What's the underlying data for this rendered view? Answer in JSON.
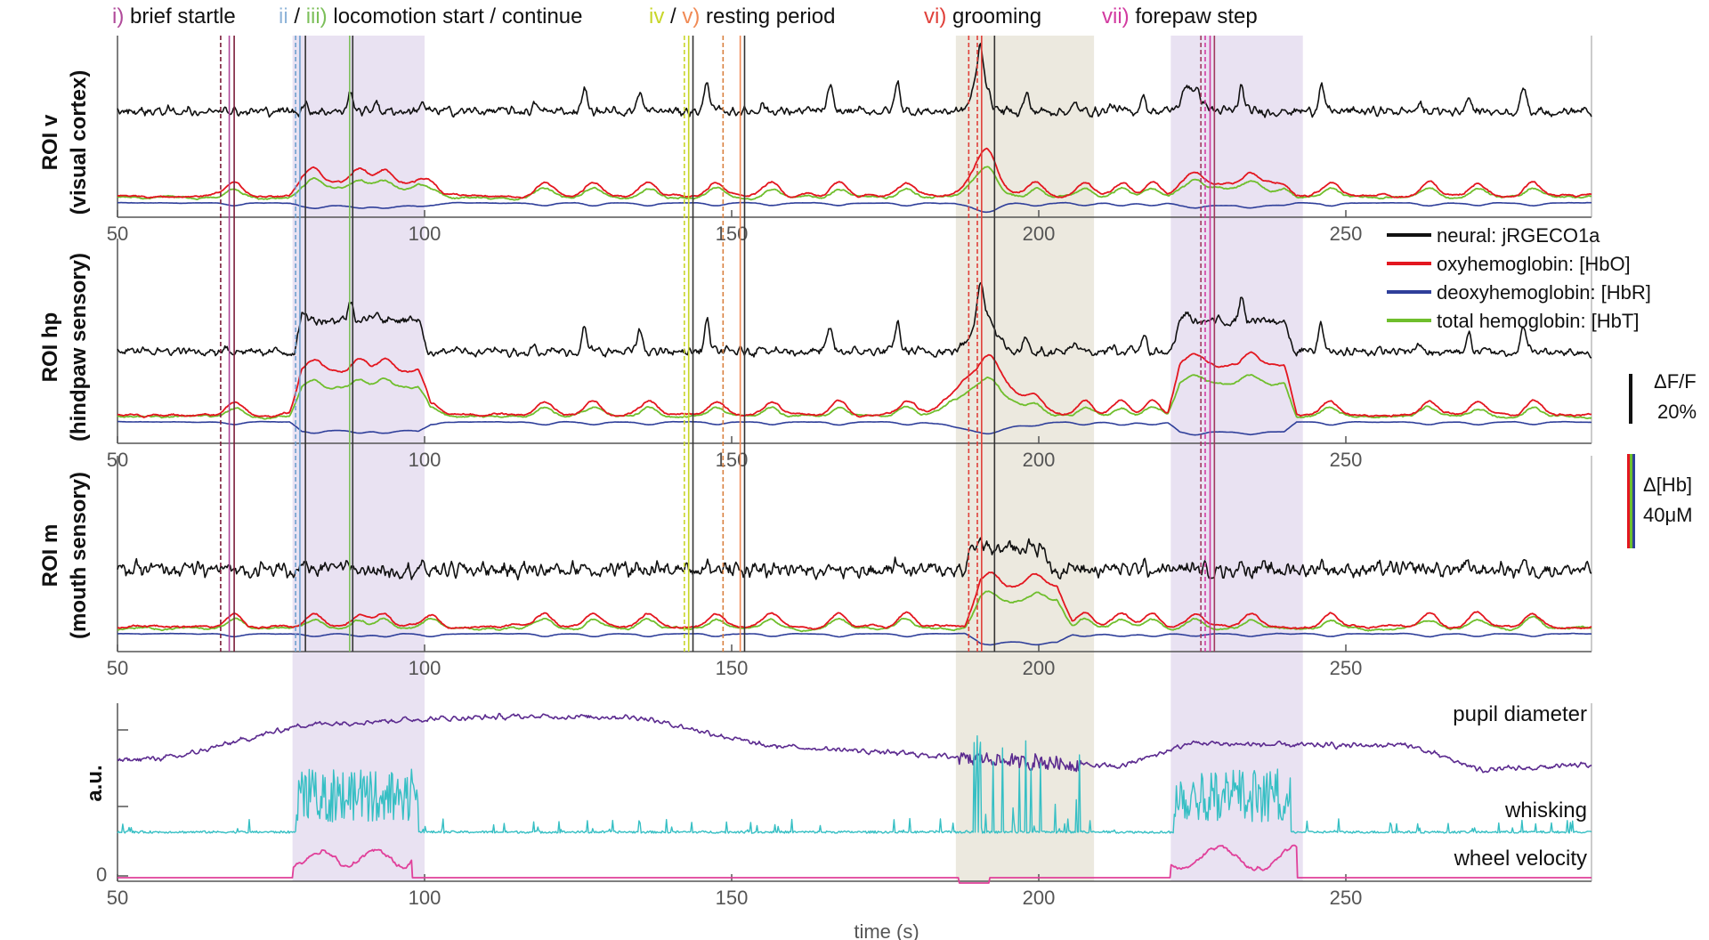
{
  "chart_data": {
    "type": "line",
    "xlabel": "time (s)",
    "xlim": [
      50,
      290
    ],
    "xticks": [
      50,
      100,
      150,
      200,
      250
    ],
    "shaded_periods": [
      {
        "start": 78.5,
        "end": 100,
        "color": "#e9e2f2"
      },
      {
        "start": 186.5,
        "end": 209,
        "color": "#ece9df"
      },
      {
        "start": 221.5,
        "end": 243,
        "color": "#e9e2f2"
      }
    ],
    "event_markers": [
      {
        "label_parts": [
          {
            "text": "i)",
            "color": "#b04a9a"
          },
          {
            "text": " brief startle",
            "color": "#111111"
          }
        ],
        "lines": [
          {
            "t": 66.8,
            "dash": true,
            "color": "#7a1e3a"
          },
          {
            "t": 68.2,
            "dash": false,
            "color": "#b04a9a"
          },
          {
            "t": 69.0,
            "dash": false,
            "color": "#7a1e3a"
          }
        ]
      },
      {
        "label_parts": [
          {
            "text": "ii",
            "color": "#8fb4d9"
          },
          {
            "text": " / ",
            "color": "#111111"
          },
          {
            "text": "iii)",
            "color": "#7cbf5a"
          },
          {
            "text": " locomotion start / continue",
            "color": "#111111"
          }
        ],
        "lines": [
          {
            "t": 79.0,
            "dash": true,
            "color": "#6fa0cf"
          },
          {
            "t": 79.7,
            "dash": false,
            "color": "#6fa0cf"
          },
          {
            "t": 80.6,
            "dash": false,
            "color": "#333333"
          },
          {
            "t": 87.8,
            "dash": false,
            "color": "#7cbf5a"
          },
          {
            "t": 88.3,
            "dash": false,
            "color": "#333333"
          }
        ]
      },
      {
        "label_parts": [
          {
            "text": "iv",
            "color": "#c8d62a"
          },
          {
            "text": " / ",
            "color": "#111111"
          },
          {
            "text": "v)",
            "color": "#f08a55"
          },
          {
            "text": " resting period",
            "color": "#111111"
          }
        ],
        "lines": [
          {
            "t": 142.3,
            "dash": true,
            "color": "#c8d62a"
          },
          {
            "t": 143.0,
            "dash": false,
            "color": "#c8d62a"
          },
          {
            "t": 143.7,
            "dash": false,
            "color": "#333333"
          },
          {
            "t": 148.6,
            "dash": true,
            "color": "#d98040"
          },
          {
            "t": 151.4,
            "dash": false,
            "color": "#f08a55"
          },
          {
            "t": 152.1,
            "dash": false,
            "color": "#333333"
          }
        ]
      },
      {
        "label_parts": [
          {
            "text": "vi)",
            "color": "#e0403a"
          },
          {
            "text": " grooming",
            "color": "#111111"
          }
        ],
        "lines": [
          {
            "t": 188.6,
            "dash": true,
            "color": "#e0403a"
          },
          {
            "t": 190.0,
            "dash": true,
            "color": "#e0403a"
          },
          {
            "t": 190.7,
            "dash": false,
            "color": "#e0403a"
          },
          {
            "t": 192.8,
            "dash": false,
            "color": "#333333"
          }
        ]
      },
      {
        "label_parts": [
          {
            "text": "vii)",
            "color": "#d23aa0"
          },
          {
            "text": " forepaw step",
            "color": "#111111"
          }
        ],
        "lines": [
          {
            "t": 226.4,
            "dash": true,
            "color": "#a03a60"
          },
          {
            "t": 227.1,
            "dash": true,
            "color": "#d23aa0"
          },
          {
            "t": 227.9,
            "dash": false,
            "color": "#d23aa0"
          },
          {
            "t": 228.6,
            "dash": false,
            "color": "#a03a60"
          }
        ]
      }
    ],
    "panels": [
      {
        "title": "ROI v",
        "subtitle": "(visual cortex)"
      },
      {
        "title": "ROI hp",
        "subtitle": "(hindpaw sensory)"
      },
      {
        "title": "ROI m",
        "subtitle": "(mouth sensory)"
      }
    ],
    "series": [
      {
        "name": "neural: jRGECO1a",
        "color": "#111111"
      },
      {
        "name": "oxyhemoglobin: [HbO]",
        "color": "#e3161f"
      },
      {
        "name": "deoxyhemoglobin: [HbR]",
        "color": "#2f3f9a"
      },
      {
        "name": "total hemoglobin: [HbT]",
        "color": "#6fbe2c"
      }
    ],
    "scale_bars": [
      {
        "label_line1": "ΔF/F",
        "label_line2": "20%"
      },
      {
        "label_line1": "Δ[Hb]",
        "label_line2": "40μM"
      }
    ],
    "bottom_panel": {
      "ylabel": "a.u.",
      "ytick_zero": "0",
      "traces": [
        {
          "name": "pupil diameter",
          "color": "#5b2a8f"
        },
        {
          "name": "whisking",
          "color": "#36bfc4"
        },
        {
          "name": "wheel velocity",
          "color": "#e0409a"
        }
      ]
    }
  }
}
